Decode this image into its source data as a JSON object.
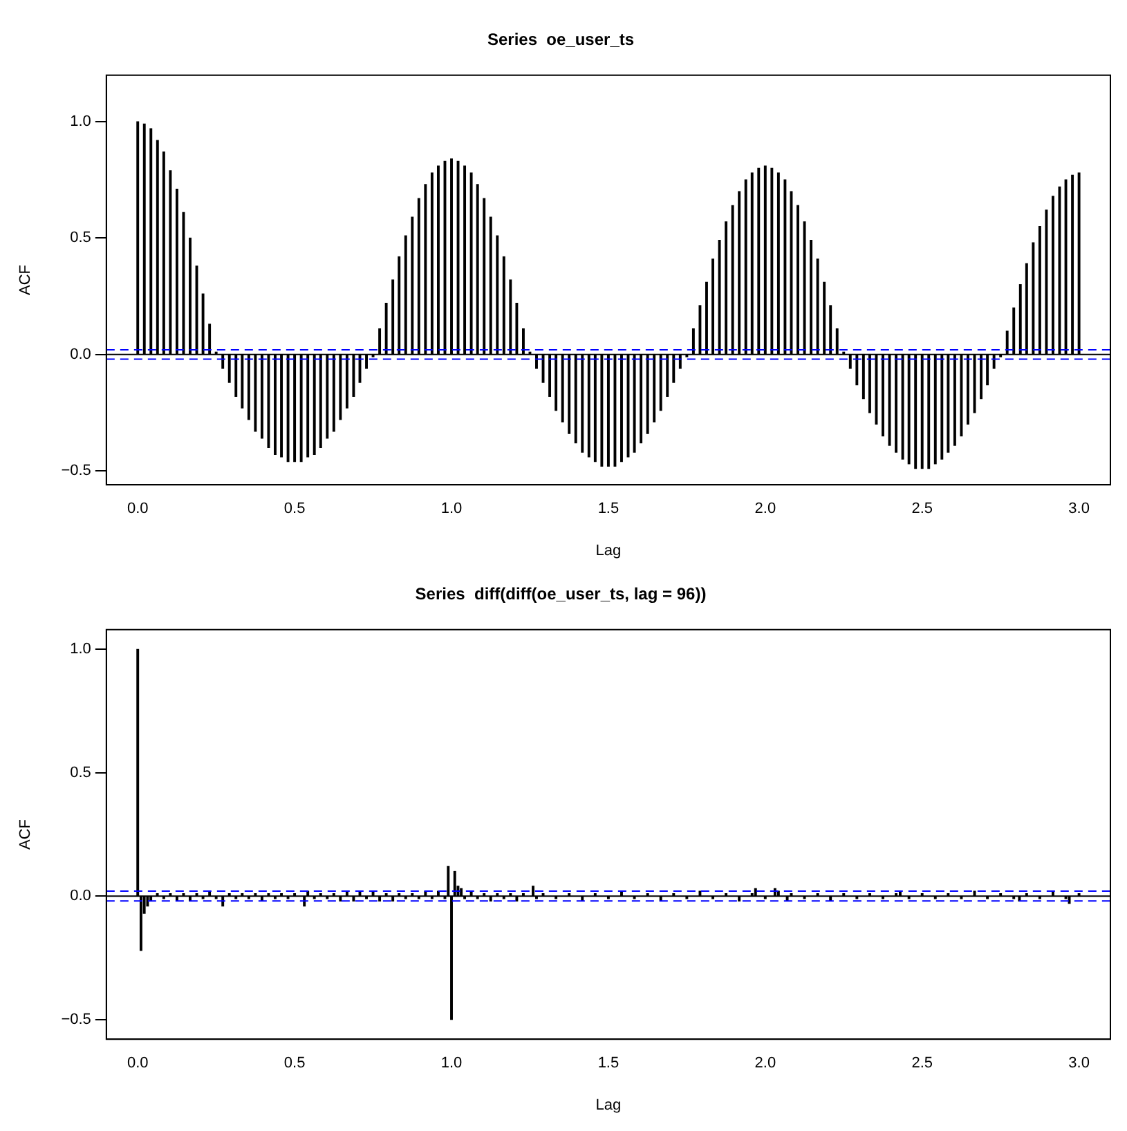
{
  "chart_data": [
    {
      "type": "bar",
      "title": "Series  oe_user_ts",
      "xlabel": "Lag",
      "ylabel": "ACF",
      "color": "#000000",
      "xlim": [
        -0.1,
        3.1
      ],
      "xticks": [
        {
          "value": 0,
          "label": "0.0"
        },
        {
          "value": 0.5,
          "label": "0.5"
        },
        {
          "value": 1,
          "label": "1.0"
        },
        {
          "value": 1.5,
          "label": "1.5"
        },
        {
          "value": 2,
          "label": "2.0"
        },
        {
          "value": 2.5,
          "label": "2.5"
        },
        {
          "value": 3,
          "label": "3.0"
        }
      ],
      "ylim": [
        -0.56,
        1.2
      ],
      "yticks": [
        {
          "value": -0.5,
          "label": "−0.5"
        },
        {
          "value": 0,
          "label": "0.0"
        },
        {
          "value": 0.5,
          "label": "0.5"
        },
        {
          "value": 1,
          "label": "1.0"
        }
      ],
      "ref_lines": [
        {
          "axis": "y",
          "value": 0,
          "color": "#000000",
          "line_style": "solid"
        },
        {
          "axis": "y",
          "value": 0.02,
          "color": "#0000ff",
          "line_style": "dashed"
        },
        {
          "axis": "y",
          "value": -0.02,
          "color": "#0000ff",
          "line_style": "dashed"
        }
      ],
      "x": [
        0,
        0.021,
        0.042,
        0.063,
        0.083,
        0.104,
        0.125,
        0.146,
        0.167,
        0.188,
        0.208,
        0.229,
        0.25,
        0.271,
        0.292,
        0.313,
        0.333,
        0.354,
        0.375,
        0.396,
        0.417,
        0.438,
        0.458,
        0.479,
        0.5,
        0.521,
        0.542,
        0.563,
        0.583,
        0.604,
        0.625,
        0.646,
        0.667,
        0.688,
        0.708,
        0.729,
        0.75,
        0.771,
        0.792,
        0.813,
        0.833,
        0.854,
        0.875,
        0.896,
        0.917,
        0.938,
        0.958,
        0.979,
        1,
        1.021,
        1.042,
        1.063,
        1.083,
        1.104,
        1.125,
        1.146,
        1.167,
        1.188,
        1.208,
        1.229,
        1.25,
        1.271,
        1.292,
        1.313,
        1.333,
        1.354,
        1.375,
        1.396,
        1.417,
        1.438,
        1.458,
        1.479,
        1.5,
        1.521,
        1.542,
        1.563,
        1.583,
        1.604,
        1.625,
        1.646,
        1.667,
        1.688,
        1.708,
        1.729,
        1.75,
        1.771,
        1.792,
        1.813,
        1.833,
        1.854,
        1.875,
        1.896,
        1.917,
        1.938,
        1.958,
        1.979,
        2,
        2.021,
        2.042,
        2.063,
        2.083,
        2.104,
        2.125,
        2.146,
        2.167,
        2.188,
        2.208,
        2.229,
        2.25,
        2.271,
        2.292,
        2.313,
        2.333,
        2.354,
        2.375,
        2.396,
        2.417,
        2.438,
        2.458,
        2.479,
        2.5,
        2.521,
        2.542,
        2.563,
        2.583,
        2.604,
        2.625,
        2.646,
        2.667,
        2.688,
        2.708,
        2.729,
        2.75,
        2.771,
        2.792,
        2.813,
        2.833,
        2.854,
        2.875,
        2.896,
        2.917,
        2.938,
        2.958,
        2.979,
        3
      ],
      "values": [
        1.0,
        0.99,
        0.97,
        0.92,
        0.87,
        0.79,
        0.71,
        0.61,
        0.5,
        0.38,
        0.26,
        0.13,
        0.01,
        -0.06,
        -0.12,
        -0.18,
        -0.23,
        -0.28,
        -0.33,
        -0.36,
        -0.4,
        -0.43,
        -0.44,
        -0.46,
        -0.46,
        -0.46,
        -0.44,
        -0.43,
        -0.4,
        -0.36,
        -0.33,
        -0.28,
        -0.23,
        -0.18,
        -0.12,
        -0.06,
        -0.01,
        0.11,
        0.22,
        0.32,
        0.42,
        0.51,
        0.59,
        0.67,
        0.73,
        0.78,
        0.81,
        0.83,
        0.84,
        0.83,
        0.81,
        0.78,
        0.73,
        0.67,
        0.59,
        0.51,
        0.42,
        0.32,
        0.22,
        0.11,
        0.01,
        -0.06,
        -0.12,
        -0.18,
        -0.24,
        -0.29,
        -0.34,
        -0.38,
        -0.42,
        -0.44,
        -0.46,
        -0.48,
        -0.48,
        -0.48,
        -0.46,
        -0.44,
        -0.42,
        -0.38,
        -0.34,
        -0.29,
        -0.24,
        -0.18,
        -0.12,
        -0.06,
        -0.01,
        0.11,
        0.21,
        0.31,
        0.41,
        0.49,
        0.57,
        0.64,
        0.7,
        0.75,
        0.78,
        0.8,
        0.81,
        0.8,
        0.78,
        0.75,
        0.7,
        0.64,
        0.57,
        0.49,
        0.41,
        0.31,
        0.21,
        0.11,
        0.01,
        -0.06,
        -0.13,
        -0.19,
        -0.25,
        -0.3,
        -0.35,
        -0.39,
        -0.42,
        -0.45,
        -0.47,
        -0.49,
        -0.49,
        -0.49,
        -0.47,
        -0.45,
        -0.42,
        -0.39,
        -0.35,
        -0.3,
        -0.25,
        -0.19,
        -0.13,
        -0.06,
        -0.01,
        0.1,
        0.2,
        0.3,
        0.39,
        0.48,
        0.55,
        0.62,
        0.68,
        0.72,
        0.75,
        0.77,
        0.78
      ]
    },
    {
      "type": "bar",
      "title": "Series  diff(diff(oe_user_ts, lag = 96))",
      "xlabel": "Lag",
      "ylabel": "ACF",
      "color": "#000000",
      "xlim": [
        -0.1,
        3.1
      ],
      "xticks": [
        {
          "value": 0,
          "label": "0.0"
        },
        {
          "value": 0.5,
          "label": "0.5"
        },
        {
          "value": 1,
          "label": "1.0"
        },
        {
          "value": 1.5,
          "label": "1.5"
        },
        {
          "value": 2,
          "label": "2.0"
        },
        {
          "value": 2.5,
          "label": "2.5"
        },
        {
          "value": 3,
          "label": "3.0"
        }
      ],
      "ylim": [
        -0.58,
        1.08
      ],
      "yticks": [
        {
          "value": -0.5,
          "label": "−0.5"
        },
        {
          "value": 0,
          "label": "0.0"
        },
        {
          "value": 0.5,
          "label": "0.5"
        },
        {
          "value": 1,
          "label": "1.0"
        }
      ],
      "ref_lines": [
        {
          "axis": "y",
          "value": 0,
          "color": "#000000",
          "line_style": "solid"
        },
        {
          "axis": "y",
          "value": 0.02,
          "color": "#0000ff",
          "line_style": "dashed"
        },
        {
          "axis": "y",
          "value": -0.02,
          "color": "#0000ff",
          "line_style": "dashed"
        }
      ],
      "x": [
        0,
        0.0104,
        0.0208,
        0.0313,
        0.0417,
        0.0625,
        0.083,
        0.104,
        0.125,
        0.146,
        0.167,
        0.188,
        0.208,
        0.229,
        0.25,
        0.271,
        0.292,
        0.313,
        0.333,
        0.354,
        0.375,
        0.396,
        0.417,
        0.438,
        0.458,
        0.479,
        0.5,
        0.531,
        0.542,
        0.563,
        0.583,
        0.604,
        0.625,
        0.646,
        0.667,
        0.688,
        0.708,
        0.729,
        0.75,
        0.771,
        0.792,
        0.813,
        0.833,
        0.854,
        0.875,
        0.896,
        0.917,
        0.938,
        0.958,
        0.979,
        0.9896,
        1,
        1.0104,
        1.0208,
        1.031,
        1.042,
        1.063,
        1.083,
        1.104,
        1.125,
        1.146,
        1.167,
        1.188,
        1.208,
        1.229,
        1.26,
        1.271,
        1.292,
        1.333,
        1.375,
        1.417,
        1.458,
        1.5,
        1.542,
        1.583,
        1.625,
        1.667,
        1.708,
        1.75,
        1.792,
        1.833,
        1.875,
        1.917,
        1.958,
        1.969,
        2.0,
        2.031,
        2.042,
        2.07,
        2.083,
        2.125,
        2.167,
        2.208,
        2.25,
        2.292,
        2.333,
        2.375,
        2.417,
        2.43,
        2.458,
        2.5,
        2.542,
        2.583,
        2.625,
        2.667,
        2.708,
        2.75,
        2.792,
        2.81,
        2.833,
        2.875,
        2.917,
        2.958,
        2.969,
        3.0
      ],
      "values": [
        1.0,
        -0.22,
        -0.07,
        -0.04,
        -0.02,
        0.01,
        -0.01,
        0.01,
        -0.02,
        0.01,
        -0.02,
        0.01,
        -0.01,
        0.02,
        -0.01,
        -0.04,
        0.01,
        -0.01,
        0.01,
        -0.01,
        0.01,
        -0.02,
        0.01,
        -0.01,
        0.01,
        -0.01,
        0.01,
        -0.04,
        0.02,
        -0.01,
        0.01,
        -0.01,
        0.01,
        -0.02,
        0.02,
        -0.02,
        0.02,
        -0.01,
        0.02,
        -0.02,
        0.01,
        -0.02,
        0.01,
        -0.01,
        0.01,
        -0.01,
        0.02,
        -0.01,
        0.02,
        -0.01,
        0.12,
        -0.5,
        0.1,
        0.04,
        0.03,
        -0.01,
        0.02,
        -0.01,
        0.01,
        -0.02,
        0.01,
        -0.01,
        0.01,
        -0.02,
        0.01,
        0.04,
        -0.01,
        0.01,
        -0.01,
        0.01,
        -0.02,
        0.01,
        -0.01,
        0.02,
        -0.01,
        0.01,
        -0.02,
        0.01,
        -0.01,
        0.02,
        -0.01,
        0.01,
        -0.02,
        0.01,
        0.03,
        -0.01,
        0.03,
        0.02,
        -0.02,
        0.01,
        -0.01,
        0.01,
        -0.02,
        0.01,
        -0.01,
        0.01,
        -0.01,
        0.01,
        0.02,
        -0.01,
        0.01,
        -0.01,
        0.01,
        -0.01,
        0.02,
        -0.01,
        0.01,
        -0.01,
        -0.02,
        0.01,
        -0.01,
        0.02,
        -0.01,
        -0.03,
        0.01
      ]
    }
  ]
}
